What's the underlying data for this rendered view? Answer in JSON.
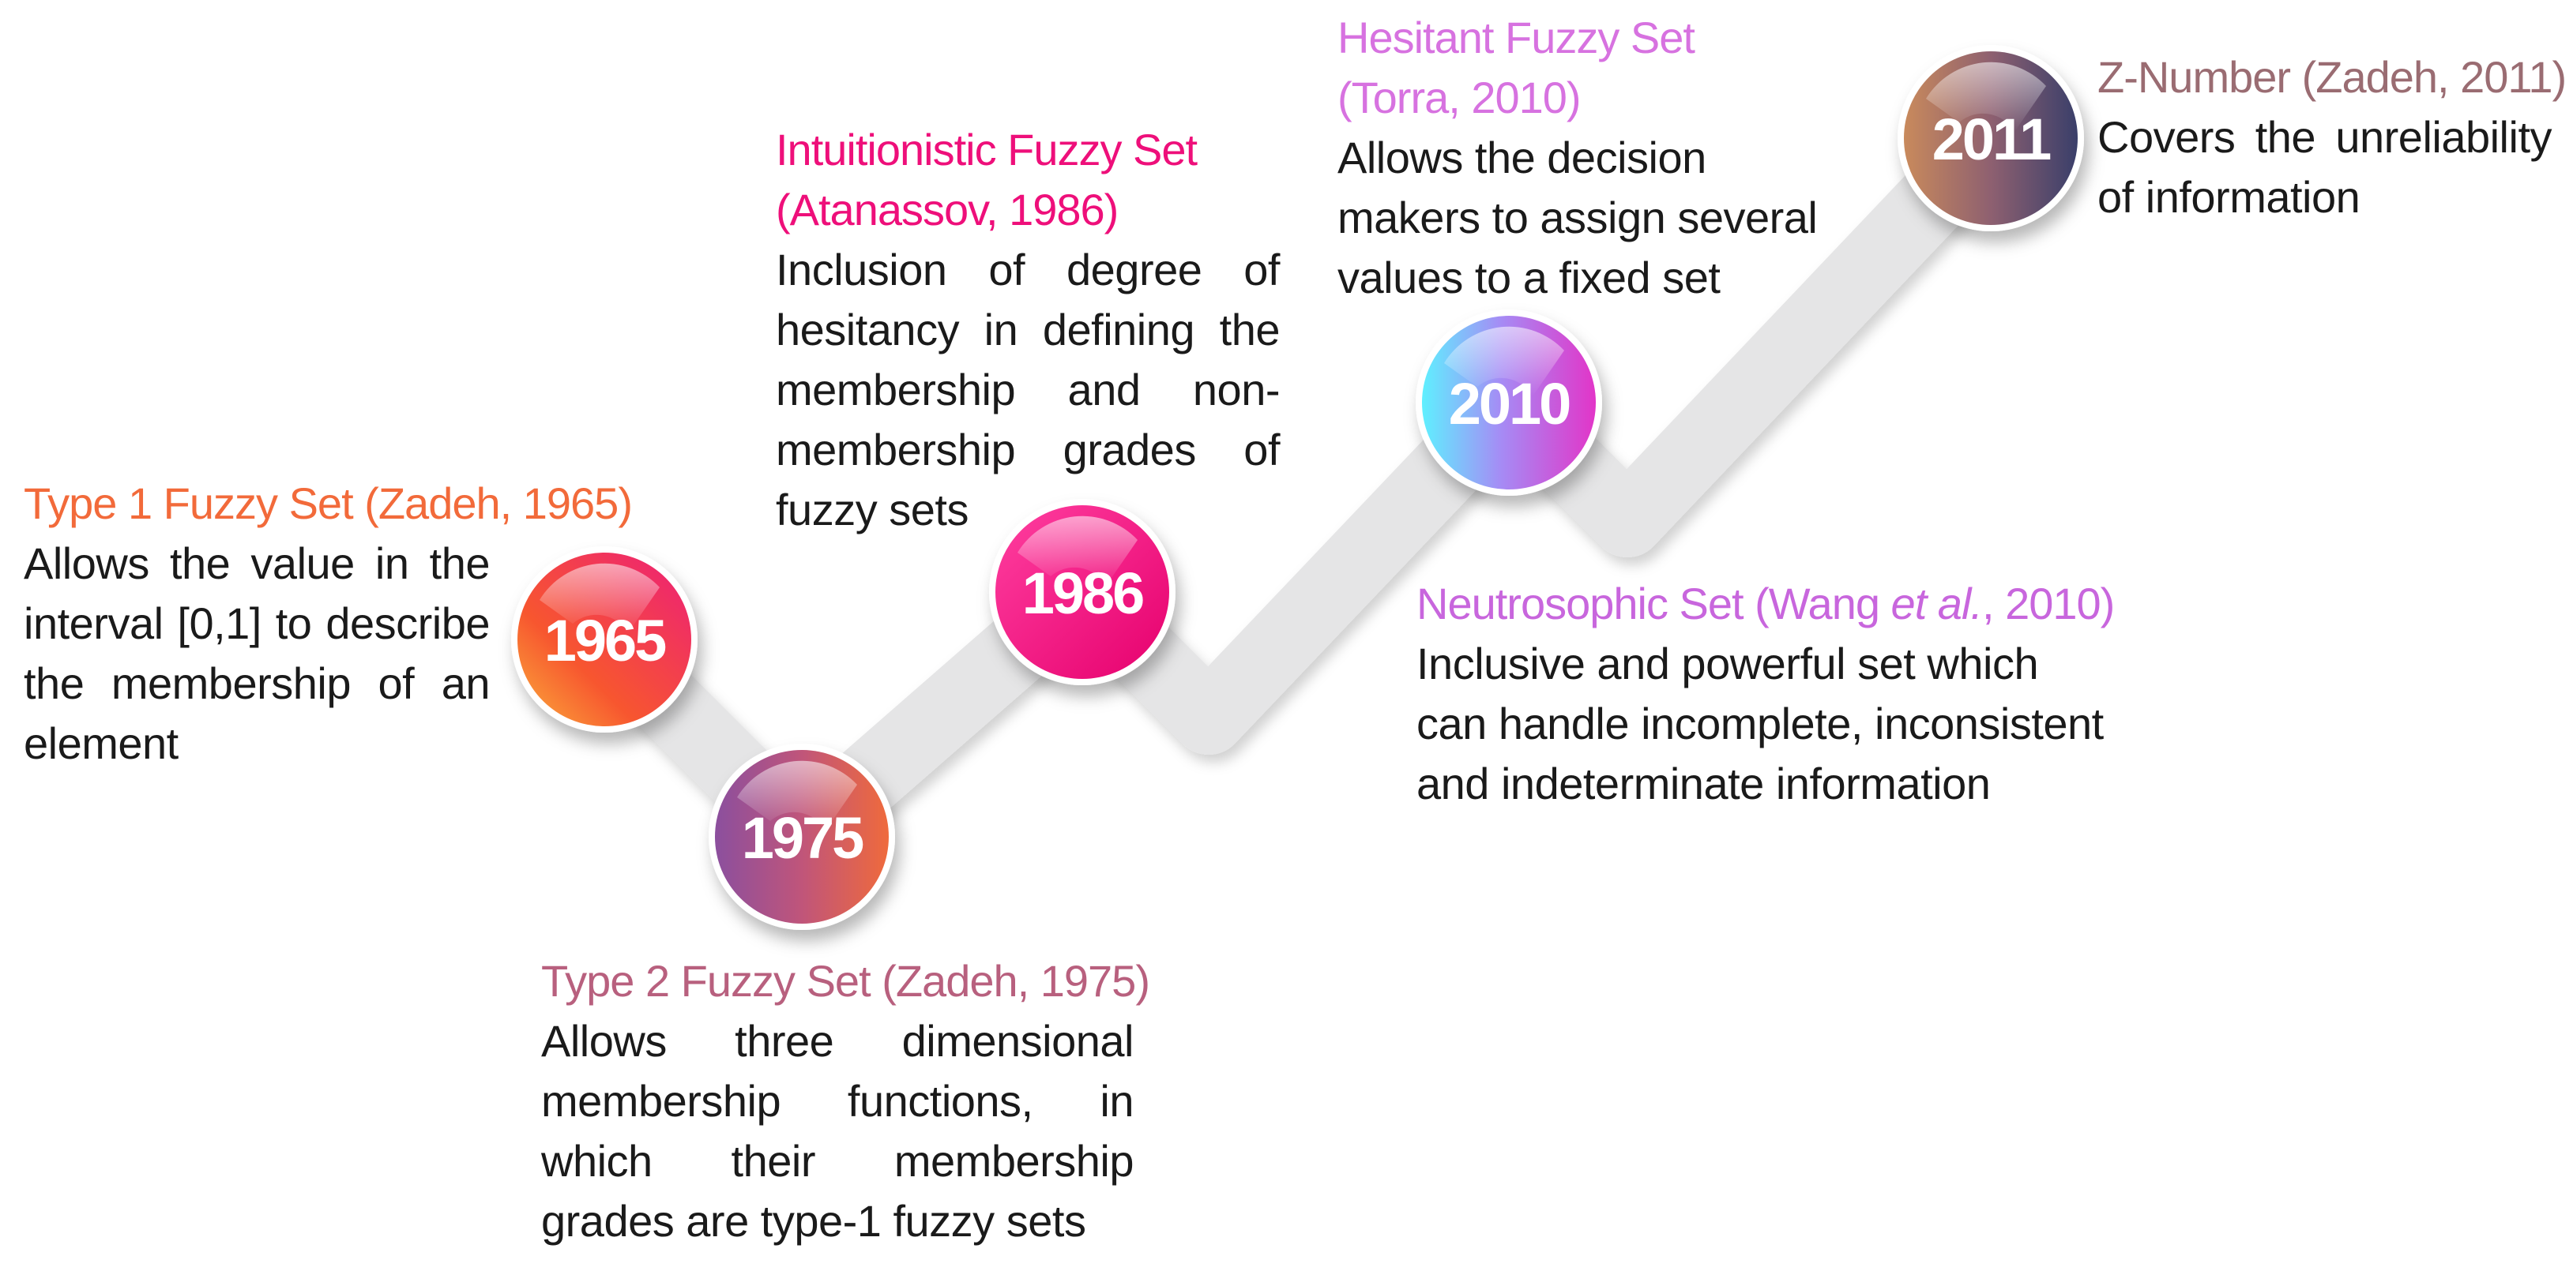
{
  "colors": {
    "track": "#e5e5e6",
    "t1965": "#f26a3a",
    "t1975": "#b8607e",
    "t1986": "#ee0f7a",
    "t2010h": "#d772e0",
    "t2010n": "#c866dd",
    "t2011": "#9a6c72"
  },
  "events": {
    "e1965": {
      "year": "1965",
      "title": "Type 1 Fuzzy Set (Zadeh, 1965)",
      "desc": "Allows the value in the interval [0,1] to describe the membership of an element"
    },
    "e1975": {
      "year": "1975",
      "title": "Type 2 Fuzzy Set (Zadeh, 1975)",
      "desc": "Allows three dimensional membership functions, in which their membership grades are type-1 fuzzy sets"
    },
    "e1986": {
      "year": "1986",
      "title": "Intuitionistic Fuzzy Set (Atanassov, 1986)",
      "desc": "Inclusion of degree of hesitancy in defining the membership and non-membership grades of fuzzy sets"
    },
    "e2010h": {
      "year": "2010",
      "title": "Hesitant Fuzzy Set (Torra, 2010)",
      "desc": "Allows the decision makers to assign several values to a fixed set"
    },
    "e2010n": {
      "title_pre": "Neutrosophic Set (Wang ",
      "title_em": "et al.",
      "title_post": ", 2010)",
      "desc": "Inclusive and powerful set which can handle incomplete, inconsistent and indeterminate information"
    },
    "e2011": {
      "year": "2011",
      "title": "Z-Number (Zadeh, 2011)",
      "desc": "Covers the unreliability of information"
    }
  }
}
